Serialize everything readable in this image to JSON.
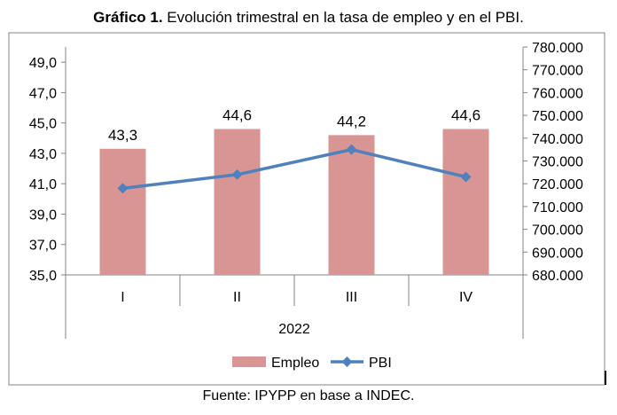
{
  "title_prefix": "Gráfico 1.",
  "title_rest": " Evolución trimestral en la tasa de empleo y en el PBI.",
  "source": "Fuente: IPYPP en base a INDEC.",
  "chart_data": {
    "type": "bar",
    "categories": [
      "I",
      "II",
      "III",
      "IV"
    ],
    "group_label": "2022",
    "series": [
      {
        "name": "Empleo",
        "type": "bar",
        "axis": "left",
        "color": "#d99594",
        "values": [
          43.3,
          44.6,
          44.2,
          44.6
        ],
        "labels": [
          "43,3",
          "44,6",
          "44,2",
          "44,6"
        ]
      },
      {
        "name": "PBI",
        "type": "line",
        "axis": "right",
        "color": "#4f81bd",
        "values": [
          718000,
          724000,
          735000,
          723000
        ]
      }
    ],
    "y_left": {
      "min": 35,
      "max": 50,
      "ticks": [
        "35,0",
        "37,0",
        "39,0",
        "41,0",
        "43,0",
        "45,0",
        "47,0",
        "49,0"
      ],
      "tick_values": [
        35,
        37,
        39,
        41,
        43,
        45,
        47,
        49
      ]
    },
    "y_right": {
      "min": 680000,
      "max": 780000,
      "ticks": [
        "680.000",
        "690.000",
        "700.000",
        "710.000",
        "720.000",
        "730.000",
        "740.000",
        "750.000",
        "760.000",
        "770.000",
        "780.000"
      ],
      "tick_values": [
        680000,
        690000,
        700000,
        710000,
        720000,
        730000,
        740000,
        750000,
        760000,
        770000,
        780000
      ]
    },
    "legend": {
      "position": "bottom",
      "items": [
        "Empleo",
        "PBI"
      ]
    }
  }
}
